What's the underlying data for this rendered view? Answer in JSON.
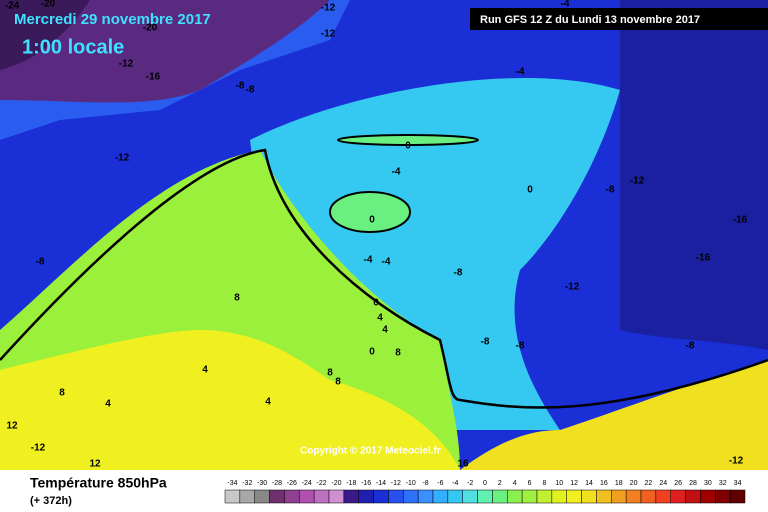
{
  "header": {
    "date": "Mercredi 29 novembre 2017",
    "time": "1:00 locale",
    "run": "Run GFS 12 Z du Lundi 13 novembre 2017"
  },
  "footer": {
    "title": "Température 850hPa",
    "lead": "(+ 372h)",
    "copyright": "Copyright © 2017 Meteociel.fr"
  },
  "scale": {
    "labels": [
      -34,
      -32,
      -30,
      -28,
      -26,
      -24,
      -22,
      -20,
      -18,
      -16,
      -14,
      -12,
      -10,
      -8,
      -6,
      -4,
      -2,
      0,
      2,
      4,
      6,
      8,
      10,
      12,
      14,
      16,
      18,
      20,
      22,
      24,
      26,
      28,
      30,
      32,
      34
    ]
  },
  "map_labels": [
    "-24",
    "-20",
    "-20",
    "-12",
    "-12",
    "-12",
    "-16",
    "-8",
    "-8",
    "-4",
    "-4",
    "-12",
    "0",
    "-4",
    "0",
    "-4",
    "-4",
    "-8",
    "0",
    "-8",
    "-12",
    "-12",
    "-16",
    "-16",
    "-8",
    "-8",
    "8",
    "0",
    "4",
    "4",
    "0",
    "8",
    "8",
    "8",
    "4",
    "4",
    "4",
    "8",
    "-8",
    "-8",
    "12",
    "-12",
    "12",
    "-12",
    "16"
  ]
}
